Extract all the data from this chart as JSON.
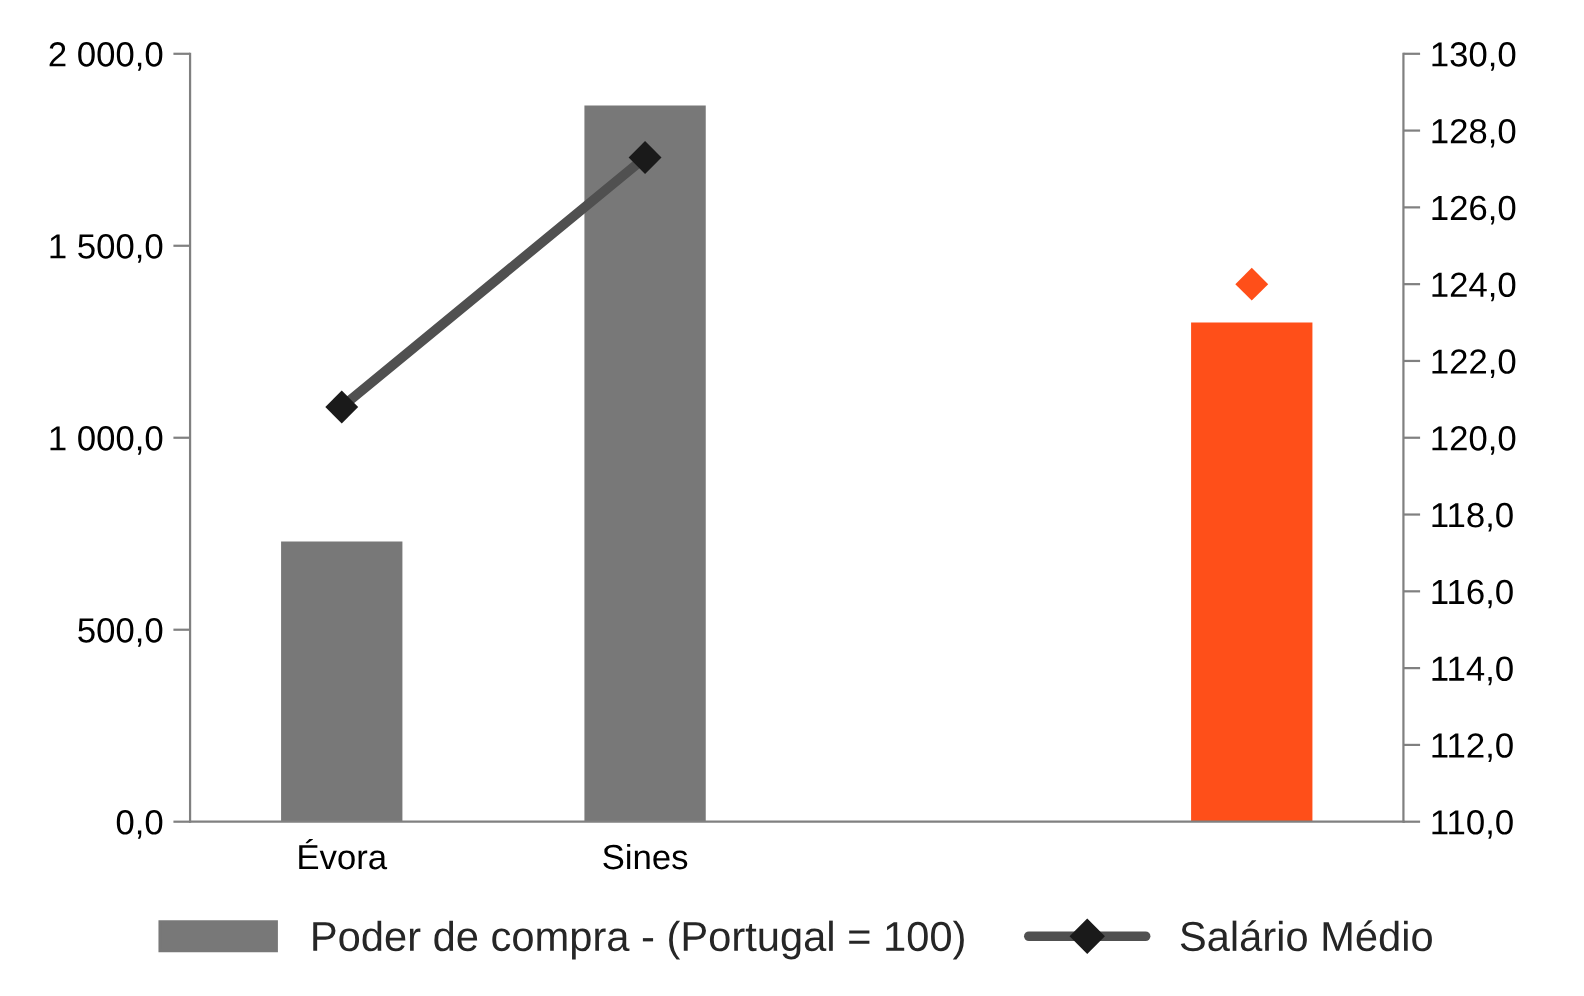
{
  "chart_data": {
    "type": "bar",
    "categories": [
      "Évora",
      "Sines",
      null,
      null
    ],
    "series": [
      {
        "name": "Poder de compra - (Portugal = 100)",
        "color": "#787878",
        "colors": [
          "#787878",
          "#787878",
          "#787878",
          "#ff4f19"
        ],
        "values": [
          730,
          1865,
          null,
          1300
        ]
      },
      {
        "name": "Salário Médio",
        "type": "line",
        "axis": "y2",
        "color": "#505050",
        "colors": [
          "#1a1a1a",
          "#1a1a1a",
          "#1a1a1a",
          "#ff4f19"
        ],
        "marker": "diamond",
        "line_style": "solid",
        "values": [
          120.8,
          127.3,
          null,
          124.0
        ]
      }
    ],
    "ylim": [
      0,
      2000
    ],
    "yticks": [
      {
        "value": 0,
        "label": "0,0"
      },
      {
        "value": 500,
        "label": "500,0"
      },
      {
        "value": 1000,
        "label": "1 000,0"
      },
      {
        "value": 1500,
        "label": "1 500,0"
      },
      {
        "value": 2000,
        "label": "2 000,0"
      }
    ],
    "y2lim": [
      110,
      130
    ],
    "y2ticks": [
      {
        "value": 110,
        "label": "110,0"
      },
      {
        "value": 112,
        "label": "112,0"
      },
      {
        "value": 114,
        "label": "114,0"
      },
      {
        "value": 116,
        "label": "116,0"
      },
      {
        "value": 118,
        "label": "118,0"
      },
      {
        "value": 120,
        "label": "120,0"
      },
      {
        "value": 122,
        "label": "122,0"
      },
      {
        "value": 124,
        "label": "124,0"
      },
      {
        "value": 126,
        "label": "126,0"
      },
      {
        "value": 128,
        "label": "128,0"
      },
      {
        "value": 130,
        "label": "130,0"
      }
    ],
    "grid": false,
    "legend": "bottom"
  }
}
